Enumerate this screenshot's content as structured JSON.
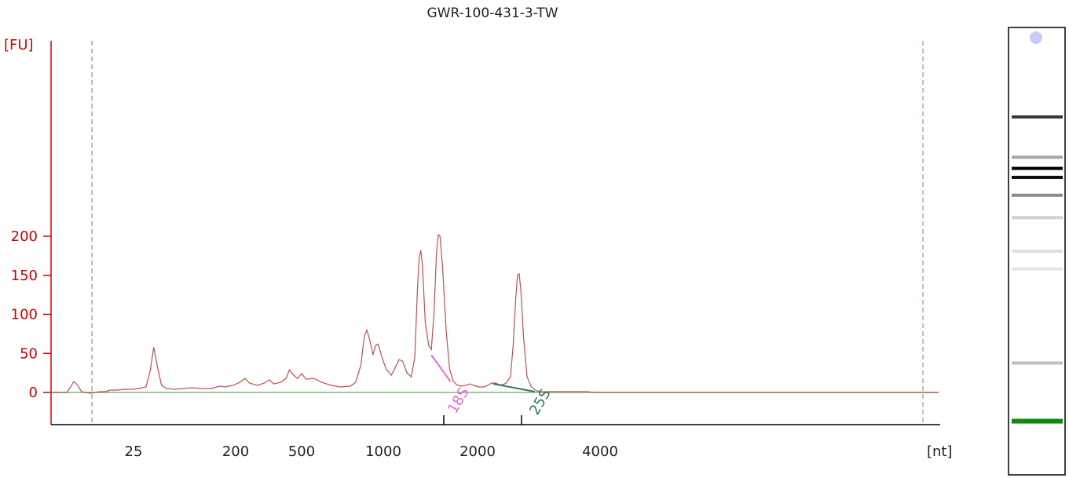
{
  "chart_data": {
    "type": "line",
    "title": "GWR-100-431-3-TW",
    "ylabel": "[FU]",
    "xlabel": "[nt]",
    "ylim": [
      -20,
      225
    ],
    "yticks": [
      0,
      50,
      100,
      150,
      200
    ],
    "xticks": [
      "25",
      "200",
      "500",
      "1000",
      "2000",
      "4000"
    ],
    "grid": false,
    "colors": {
      "trace": "#c0504d",
      "axis_y": "#cc0000",
      "baseline": "#77bb77",
      "dashed_markers": "#559955",
      "marker_18s": "#ee66dd",
      "marker_25s": "#337766",
      "gel_lower_marker": "#118811",
      "gel_upper_marker": "#c8ccf5"
    },
    "series": [
      {
        "x_unit": "seconds",
        "points": [
          [
            20.0,
            0
          ],
          [
            21.8,
            0
          ],
          [
            22.3,
            8
          ],
          [
            22.6,
            14
          ],
          [
            23.0,
            10
          ],
          [
            23.5,
            1
          ],
          [
            24.0,
            0
          ],
          [
            24.5,
            -1
          ],
          [
            25.0,
            0
          ],
          [
            25.6,
            1
          ],
          [
            26.2,
            1
          ],
          [
            26.8,
            3
          ],
          [
            27.6,
            3
          ],
          [
            28.5,
            4
          ],
          [
            29.4,
            4
          ],
          [
            30.1,
            5
          ],
          [
            30.9,
            7
          ],
          [
            31.4,
            28
          ],
          [
            31.8,
            58
          ],
          [
            32.2,
            34
          ],
          [
            32.7,
            9
          ],
          [
            33.3,
            5
          ],
          [
            34.2,
            4
          ],
          [
            35.2,
            5
          ],
          [
            36.2,
            6
          ],
          [
            37.3,
            5
          ],
          [
            38.4,
            5
          ],
          [
            39.4,
            8
          ],
          [
            40.0,
            7
          ],
          [
            40.9,
            9
          ],
          [
            41.7,
            13
          ],
          [
            42.3,
            18
          ],
          [
            42.8,
            12
          ],
          [
            43.7,
            9
          ],
          [
            44.5,
            12
          ],
          [
            45.1,
            16
          ],
          [
            45.6,
            11
          ],
          [
            46.4,
            13
          ],
          [
            47.0,
            18
          ],
          [
            47.4,
            29
          ],
          [
            47.7,
            24
          ],
          [
            48.3,
            18
          ],
          [
            48.8,
            24
          ],
          [
            49.3,
            17
          ],
          [
            50.2,
            18
          ],
          [
            51.1,
            13
          ],
          [
            52.2,
            9
          ],
          [
            53.2,
            7
          ],
          [
            54.4,
            8
          ],
          [
            55.0,
            13
          ],
          [
            55.6,
            35
          ],
          [
            56.0,
            72
          ],
          [
            56.3,
            80
          ],
          [
            56.6,
            68
          ],
          [
            57.0,
            48
          ],
          [
            57.3,
            60
          ],
          [
            57.6,
            62
          ],
          [
            58.0,
            46
          ],
          [
            58.5,
            30
          ],
          [
            59.1,
            22
          ],
          [
            59.6,
            33
          ],
          [
            60.0,
            42
          ],
          [
            60.4,
            40
          ],
          [
            60.9,
            25
          ],
          [
            61.4,
            20
          ],
          [
            61.8,
            45
          ],
          [
            62.1,
            130
          ],
          [
            62.3,
            172
          ],
          [
            62.5,
            182
          ],
          [
            62.7,
            160
          ],
          [
            63.0,
            90
          ],
          [
            63.4,
            60
          ],
          [
            63.7,
            55
          ],
          [
            64.0,
            100
          ],
          [
            64.3,
            180
          ],
          [
            64.5,
            202
          ],
          [
            64.7,
            200
          ],
          [
            65.0,
            160
          ],
          [
            65.4,
            80
          ],
          [
            65.8,
            30
          ],
          [
            66.2,
            15
          ],
          [
            66.6,
            10
          ],
          [
            67.1,
            8
          ],
          [
            67.7,
            9
          ],
          [
            68.1,
            11
          ],
          [
            68.6,
            9
          ],
          [
            69.1,
            7
          ],
          [
            69.7,
            7
          ],
          [
            70.2,
            9
          ],
          [
            70.6,
            12
          ],
          [
            71.1,
            12
          ],
          [
            71.5,
            10
          ],
          [
            71.9,
            10
          ],
          [
            72.3,
            12
          ],
          [
            72.8,
            20
          ],
          [
            73.1,
            60
          ],
          [
            73.4,
            120
          ],
          [
            73.6,
            150
          ],
          [
            73.8,
            152
          ],
          [
            74.0,
            130
          ],
          [
            74.3,
            70
          ],
          [
            74.7,
            20
          ],
          [
            75.2,
            7
          ],
          [
            75.8,
            2
          ],
          [
            76.4,
            1
          ],
          [
            77.5,
            1
          ],
          [
            78.8,
            1
          ],
          [
            80.0,
            1
          ],
          [
            81.6,
            1
          ],
          [
            82.4,
            0
          ],
          [
            84.0,
            0
          ],
          [
            86.0,
            0
          ],
          [
            88.0,
            0
          ],
          [
            90.0,
            0
          ],
          [
            92.0,
            0
          ],
          [
            94.0,
            0
          ],
          [
            96.0,
            0
          ],
          [
            98.0,
            0
          ],
          [
            100.0,
            0
          ],
          [
            102.0,
            0
          ],
          [
            104.0,
            0
          ],
          [
            106.0,
            0
          ],
          [
            108.0,
            0
          ],
          [
            110.0,
            0
          ],
          [
            112.0,
            0
          ],
          [
            114.0,
            0
          ],
          [
            116.0,
            0
          ],
          [
            118.0,
            0
          ],
          [
            120.0,
            0
          ],
          [
            122.0,
            0
          ]
        ]
      }
    ],
    "markers": [
      {
        "label": "18S",
        "x_from": 63.7,
        "y_from": 48,
        "x_to": 65.9,
        "y_to": 14
      },
      {
        "label": "25S",
        "x_from": 70.8,
        "y_from": 11,
        "x_to": 75.6,
        "y_to": 1
      }
    ],
    "gel_bands": [
      {
        "position": 0.2,
        "intensity": 0.78,
        "color": "#000000"
      },
      {
        "position": 0.29,
        "intensity": 0.35,
        "color": "#000000"
      },
      {
        "position": 0.315,
        "intensity": 1.0,
        "color": "#000000"
      },
      {
        "position": 0.335,
        "intensity": 0.95,
        "color": "#000000"
      },
      {
        "position": 0.375,
        "intensity": 0.45,
        "color": "#000000"
      },
      {
        "position": 0.425,
        "intensity": 0.18,
        "color": "#000000"
      },
      {
        "position": 0.5,
        "intensity": 0.12,
        "color": "#000000"
      },
      {
        "position": 0.54,
        "intensity": 0.1,
        "color": "#000000"
      },
      {
        "position": 0.75,
        "intensity": 0.25,
        "color": "#000000"
      },
      {
        "position": 0.88,
        "intensity": 1.0,
        "color": "#118811"
      }
    ]
  }
}
